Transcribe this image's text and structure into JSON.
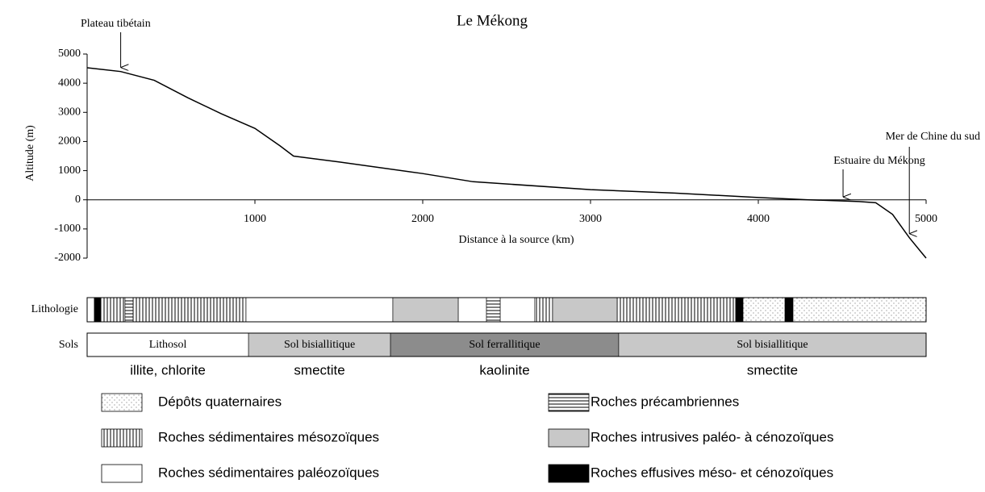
{
  "chart_data": {
    "type": "line",
    "title": "Le Mékong",
    "xlabel": "Distance à la source  (km)",
    "ylabel": "Altitude (m)",
    "x": [
      0,
      200,
      400,
      600,
      800,
      1000,
      1150,
      1230,
      1500,
      2000,
      2300,
      3000,
      3500,
      4000,
      4300,
      4600,
      4700,
      4800,
      4900,
      5000
    ],
    "values": [
      4530,
      4400,
      4100,
      3500,
      2950,
      2450,
      1850,
      1500,
      1300,
      900,
      620,
      350,
      230,
      80,
      0,
      -60,
      -100,
      -500,
      -1300,
      -2000
    ],
    "color": "#000000",
    "xlim": [
      0,
      5000
    ],
    "ylim": [
      -2000,
      5000
    ],
    "xticks": [
      1000,
      2000,
      3000,
      4000,
      5000
    ],
    "yticks": [
      -2000,
      -1000,
      0,
      1000,
      2000,
      3000,
      4000,
      5000
    ],
    "annotations": [
      {
        "text": "Plateau tibétain",
        "x": 200
      },
      {
        "text": "Estuaire du Mékong",
        "x": 4505
      },
      {
        "text": "Mer de Chine du sud",
        "x": 4900
      }
    ]
  },
  "lithology": {
    "label": "Lithologie",
    "segments": [
      {
        "from": 0,
        "to": 43,
        "rock": 2
      },
      {
        "from": 43,
        "to": 82,
        "rock": 5
      },
      {
        "from": 82,
        "to": 226,
        "rock": 1
      },
      {
        "from": 226,
        "to": 274,
        "rock": 3
      },
      {
        "from": 274,
        "to": 947,
        "rock": 1
      },
      {
        "from": 947,
        "to": 1822,
        "rock": 2
      },
      {
        "from": 1822,
        "to": 2212,
        "rock": 4
      },
      {
        "from": 2212,
        "to": 2380,
        "rock": 2
      },
      {
        "from": 2380,
        "to": 2462,
        "rock": 3
      },
      {
        "from": 2462,
        "to": 2668,
        "rock": 2
      },
      {
        "from": 2668,
        "to": 2774,
        "rock": 1
      },
      {
        "from": 2774,
        "to": 3159,
        "rock": 4
      },
      {
        "from": 3159,
        "to": 3865,
        "rock": 1
      },
      {
        "from": 3865,
        "to": 3909,
        "rock": 5
      },
      {
        "from": 3909,
        "to": 4159,
        "rock": 0
      },
      {
        "from": 4159,
        "to": 4207,
        "rock": 5
      },
      {
        "from": 4207,
        "to": 5000,
        "rock": 0
      }
    ]
  },
  "sols": {
    "label": "Sols",
    "segments": [
      {
        "from": 0,
        "to": 962,
        "name": "Lithosol",
        "mineral": "illite, chlorite",
        "color": "#ffffff"
      },
      {
        "from": 962,
        "to": 1808,
        "name": "Sol bisiallitique",
        "mineral": "smectite",
        "color": "#c8c8c8"
      },
      {
        "from": 1808,
        "to": 3168,
        "name": "Sol ferrallitique",
        "mineral": "kaolinite",
        "color": "#8c8c8c"
      },
      {
        "from": 3168,
        "to": 5000,
        "name": "Sol bisiallitique",
        "mineral": "smectite",
        "color": "#c8c8c8"
      }
    ]
  },
  "legend": [
    "Dépôts quaternaires",
    "Roches sédimentaires mésozoïques",
    "Roches sédimentaires paléozoïques",
    "Roches précambriennes",
    "Roches intrusives paléo- à cénozoïques",
    "Roches effusives méso- et cénozoïques"
  ]
}
